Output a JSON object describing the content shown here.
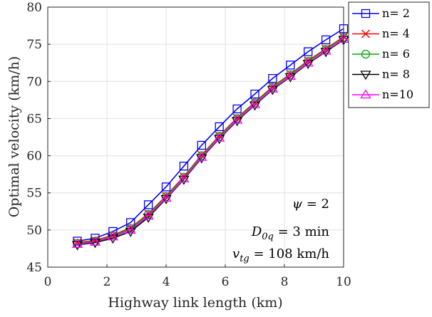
{
  "chart_data": {
    "type": "line",
    "xlabel": "Highway link length (km)",
    "ylabel": "Optimal velocity (km/h)",
    "xlim": [
      0,
      10
    ],
    "ylim": [
      45,
      80
    ],
    "xticks": [
      "0",
      "2",
      "4",
      "6",
      "8",
      "10"
    ],
    "yticks": [
      "45",
      "50",
      "55",
      "60",
      "65",
      "70",
      "75",
      "80"
    ],
    "grid": true,
    "legend_position": "outside-top-right",
    "x": [
      1.0,
      1.6,
      2.2,
      2.8,
      3.4,
      4.0,
      4.6,
      5.2,
      5.8,
      6.4,
      7.0,
      7.6,
      8.2,
      8.8,
      9.4,
      10.0
    ],
    "series": [
      {
        "name": "n= 2",
        "color": "#0000ff",
        "marker": "square",
        "values": [
          48.5,
          48.9,
          49.8,
          51.0,
          53.4,
          55.8,
          58.6,
          61.4,
          63.9,
          66.3,
          68.3,
          70.4,
          72.2,
          74.0,
          75.6,
          77.1
        ]
      },
      {
        "name": "n= 4",
        "color": "#ff0000",
        "marker": "x",
        "values": [
          48.3,
          48.6,
          49.3,
          50.3,
          52.2,
          54.6,
          57.2,
          60.1,
          62.7,
          65.1,
          67.2,
          69.3,
          71.0,
          72.8,
          74.4,
          76.0
        ]
      },
      {
        "name": "n= 6",
        "color": "#00aa00",
        "marker": "circle",
        "values": [
          48.2,
          48.5,
          49.2,
          50.2,
          52.1,
          54.5,
          57.1,
          60.0,
          62.6,
          65.0,
          67.1,
          69.2,
          70.9,
          72.7,
          74.3,
          75.9
        ]
      },
      {
        "name": "n= 8",
        "color": "#000000",
        "marker": "triangle-down",
        "values": [
          48.0,
          48.3,
          48.9,
          49.8,
          51.7,
          54.2,
          56.8,
          59.7,
          62.3,
          64.7,
          66.8,
          68.9,
          70.6,
          72.4,
          74.0,
          75.6
        ]
      },
      {
        "name": "n=10",
        "color": "#ff00ff",
        "marker": "triangle-up",
        "values": [
          48.1,
          48.4,
          49.1,
          50.0,
          51.9,
          54.3,
          56.9,
          59.8,
          62.4,
          64.8,
          66.9,
          69.0,
          70.7,
          72.5,
          74.1,
          75.7
        ]
      }
    ],
    "annotations": [
      {
        "id": "psi",
        "main": "ψ",
        "sub": "",
        "rest": " = 2"
      },
      {
        "id": "d0q",
        "main": "D",
        "sub": "0q",
        "rest": " = 3 min"
      },
      {
        "id": "vtg",
        "main": "v",
        "sub": "tg",
        "rest": " = 108 km/h"
      }
    ]
  }
}
